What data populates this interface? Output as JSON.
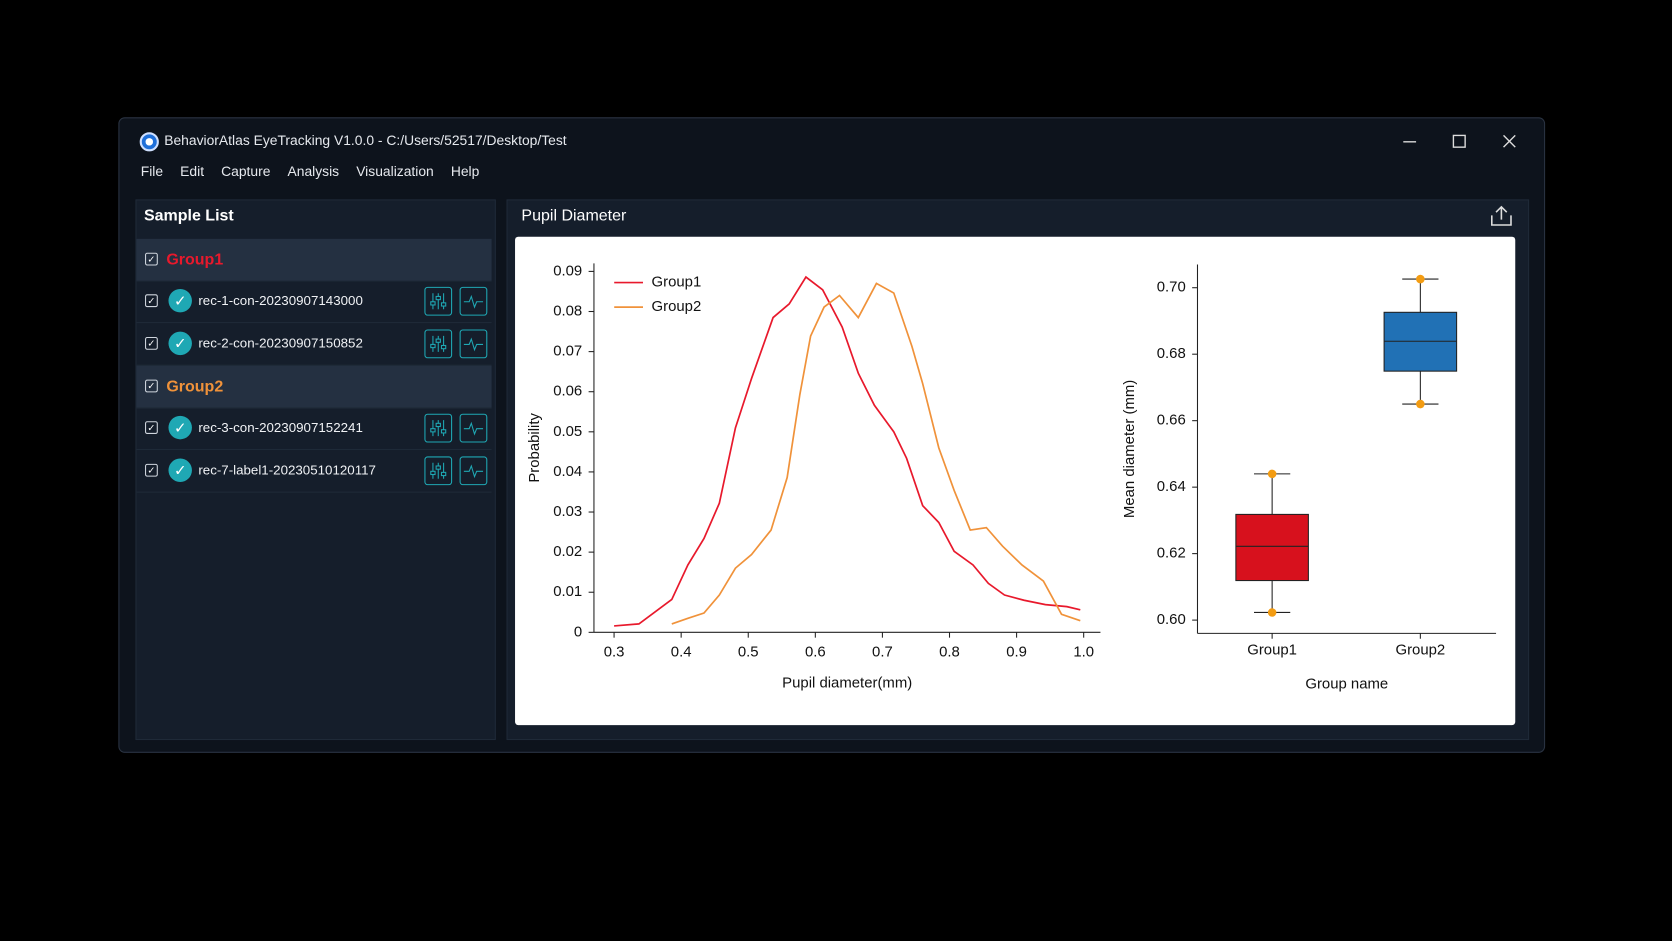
{
  "window": {
    "title": "BehaviorAtlas EyeTracking V1.0.0 - C:/Users/52517/Desktop/Test"
  },
  "menu": [
    "File",
    "Edit",
    "Capture",
    "Analysis",
    "Visualization",
    "Help"
  ],
  "sidebar": {
    "title": "Sample List",
    "groups": [
      {
        "name": "Group1",
        "color": "#e8192c",
        "samples": [
          "rec-1-con-20230907143000",
          "rec-2-con-20230907150852"
        ]
      },
      {
        "name": "Group2",
        "color": "#f0923a",
        "samples": [
          "rec-3-con-20230907152241",
          "rec-7-label1-20230510120117"
        ]
      }
    ]
  },
  "panel": {
    "title": "Pupil Diameter"
  },
  "chart_data": [
    {
      "type": "line",
      "xlabel": "Pupil diameter(mm)",
      "ylabel": "Probability",
      "legend": "upper left",
      "xlim": [
        0.27,
        1.025
      ],
      "ylim": [
        0,
        0.092
      ],
      "xticks": [
        0.3,
        0.4,
        0.5,
        0.6,
        0.7,
        0.8,
        0.9,
        {
          "value": 1,
          "label": "1.0"
        }
      ],
      "yticks": [
        0,
        0.01,
        0.02,
        0.03,
        0.04,
        0.05,
        0.06,
        0.07,
        0.08,
        0.09
      ],
      "series": [
        {
          "name": "Group1",
          "color": "#e8192c",
          "x": [
            0.3,
            0.337,
            0.386,
            0.41,
            0.434,
            0.457,
            0.481,
            0.505,
            0.537,
            0.561,
            0.586,
            0.611,
            0.64,
            0.664,
            0.688,
            0.717,
            0.736,
            0.76,
            0.784,
            0.807,
            0.835,
            0.858,
            0.882,
            0.911,
            0.943,
            0.975,
            0.995
          ],
          "values": [
            0.0016,
            0.0021,
            0.0082,
            0.0168,
            0.0234,
            0.0322,
            0.051,
            0.0633,
            0.0785,
            0.0819,
            0.0886,
            0.0854,
            0.0761,
            0.0646,
            0.0566,
            0.05,
            0.0434,
            0.0316,
            0.0274,
            0.0202,
            0.0168,
            0.0122,
            0.0093,
            0.008,
            0.0069,
            0.0064,
            0.0056
          ]
        },
        {
          "name": "Group2",
          "color": "#f0923a",
          "x": [
            0.386,
            0.41,
            0.434,
            0.457,
            0.481,
            0.505,
            0.534,
            0.558,
            0.577,
            0.593,
            0.613,
            0.636,
            0.664,
            0.691,
            0.717,
            0.744,
            0.76,
            0.784,
            0.807,
            0.831,
            0.855,
            0.879,
            0.908,
            0.94,
            0.967,
            0.995
          ],
          "values": [
            0.0021,
            0.0035,
            0.0048,
            0.0093,
            0.016,
            0.0194,
            0.0255,
            0.0386,
            0.0593,
            0.0739,
            0.0811,
            0.084,
            0.0785,
            0.087,
            0.0846,
            0.0713,
            0.062,
            0.046,
            0.0354,
            0.0255,
            0.0261,
            0.0215,
            0.0168,
            0.0128,
            0.0045,
            0.0029
          ]
        }
      ]
    },
    {
      "type": "box",
      "xlabel": "Group name",
      "ylabel": "Mean diameter (mm)",
      "ylim": [
        0.596,
        0.707
      ],
      "yticks": [
        {
          "value": 0.6,
          "label": "0.60"
        },
        {
          "value": 0.62,
          "label": "0.62"
        },
        {
          "value": 0.64,
          "label": "0.64"
        },
        {
          "value": 0.66,
          "label": "0.66"
        },
        {
          "value": 0.68,
          "label": "0.68"
        },
        {
          "value": 0.7,
          "label": "0.70"
        }
      ],
      "categories": [
        "Group1",
        "Group2"
      ],
      "cap_color": "#f39c12",
      "boxes": [
        {
          "min": 0.6023,
          "q1": 0.6119,
          "median": 0.6222,
          "q3": 0.6318,
          "max": 0.644,
          "color": "#d7111d"
        },
        {
          "min": 0.665,
          "q1": 0.6749,
          "median": 0.6839,
          "q3": 0.6926,
          "max": 0.7026,
          "color": "#2171b5"
        }
      ]
    }
  ]
}
